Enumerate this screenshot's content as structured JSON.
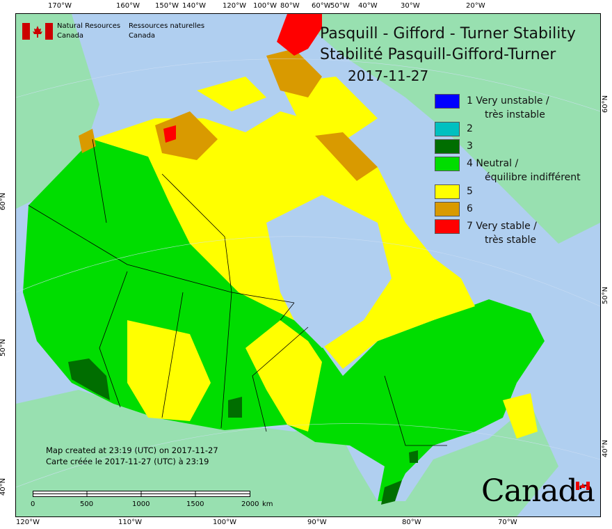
{
  "header": {
    "org_en_line1": "Natural Resources",
    "org_en_line2": "Canada",
    "org_fr_line1": "Ressources naturelles",
    "org_fr_line2": "Canada"
  },
  "map": {
    "title_en": "Pasquill - Gifford - Turner Stability",
    "title_fr": "Stabilité Pasquill-Gifford-Turner",
    "date": "2017-11-27",
    "top_ticks": [
      "170°W",
      "160°W",
      "150°W",
      "140°W",
      "120°W",
      "100°W",
      "80°W",
      "60°W",
      "50°W",
      "40°W",
      "30°W",
      "20°W"
    ],
    "bottom_ticks": [
      "120°W",
      "110°W",
      "100°W",
      "90°W",
      "80°W",
      "70°W"
    ],
    "left_ticks": [
      "60°N",
      "50°N",
      "40°N"
    ],
    "right_ticks": [
      "60°N",
      "50°N",
      "40°N"
    ],
    "colors": {
      "ocean": "#b0cff0",
      "foreign_land": "#98e0b0",
      "class1": "#0000ff",
      "class2": "#00c0c0",
      "class3": "#006e00",
      "class4": "#00dd00",
      "class5": "#ffff00",
      "class6": "#d99a00",
      "class7": "#ff0000"
    }
  },
  "legend": [
    {
      "line1": "1 Very unstable /",
      "line2": "très instable",
      "color": "#0000ff"
    },
    {
      "line1": "2",
      "line2": "",
      "color": "#00c0c0"
    },
    {
      "line1": "3",
      "line2": "",
      "color": "#006e00"
    },
    {
      "line1": "4 Neutral /",
      "line2": "équilibre indifférent",
      "color": "#00dd00"
    },
    {
      "line1": "5",
      "line2": "",
      "color": "#ffff00"
    },
    {
      "line1": "6",
      "line2": "",
      "color": "#d99a00"
    },
    {
      "line1": "7 Very stable /",
      "line2": "très stable",
      "color": "#ff0000"
    }
  ],
  "notes": {
    "created_en": "Map created at 23:19 (UTC) on 2017-11-27",
    "created_fr": "Carte créée le 2017-11-27 (UTC) à 23:19"
  },
  "scale_bar": {
    "labels": [
      "0",
      "500",
      "1000",
      "1500",
      "2000"
    ],
    "unit": "km"
  },
  "wordmark": "Canada"
}
